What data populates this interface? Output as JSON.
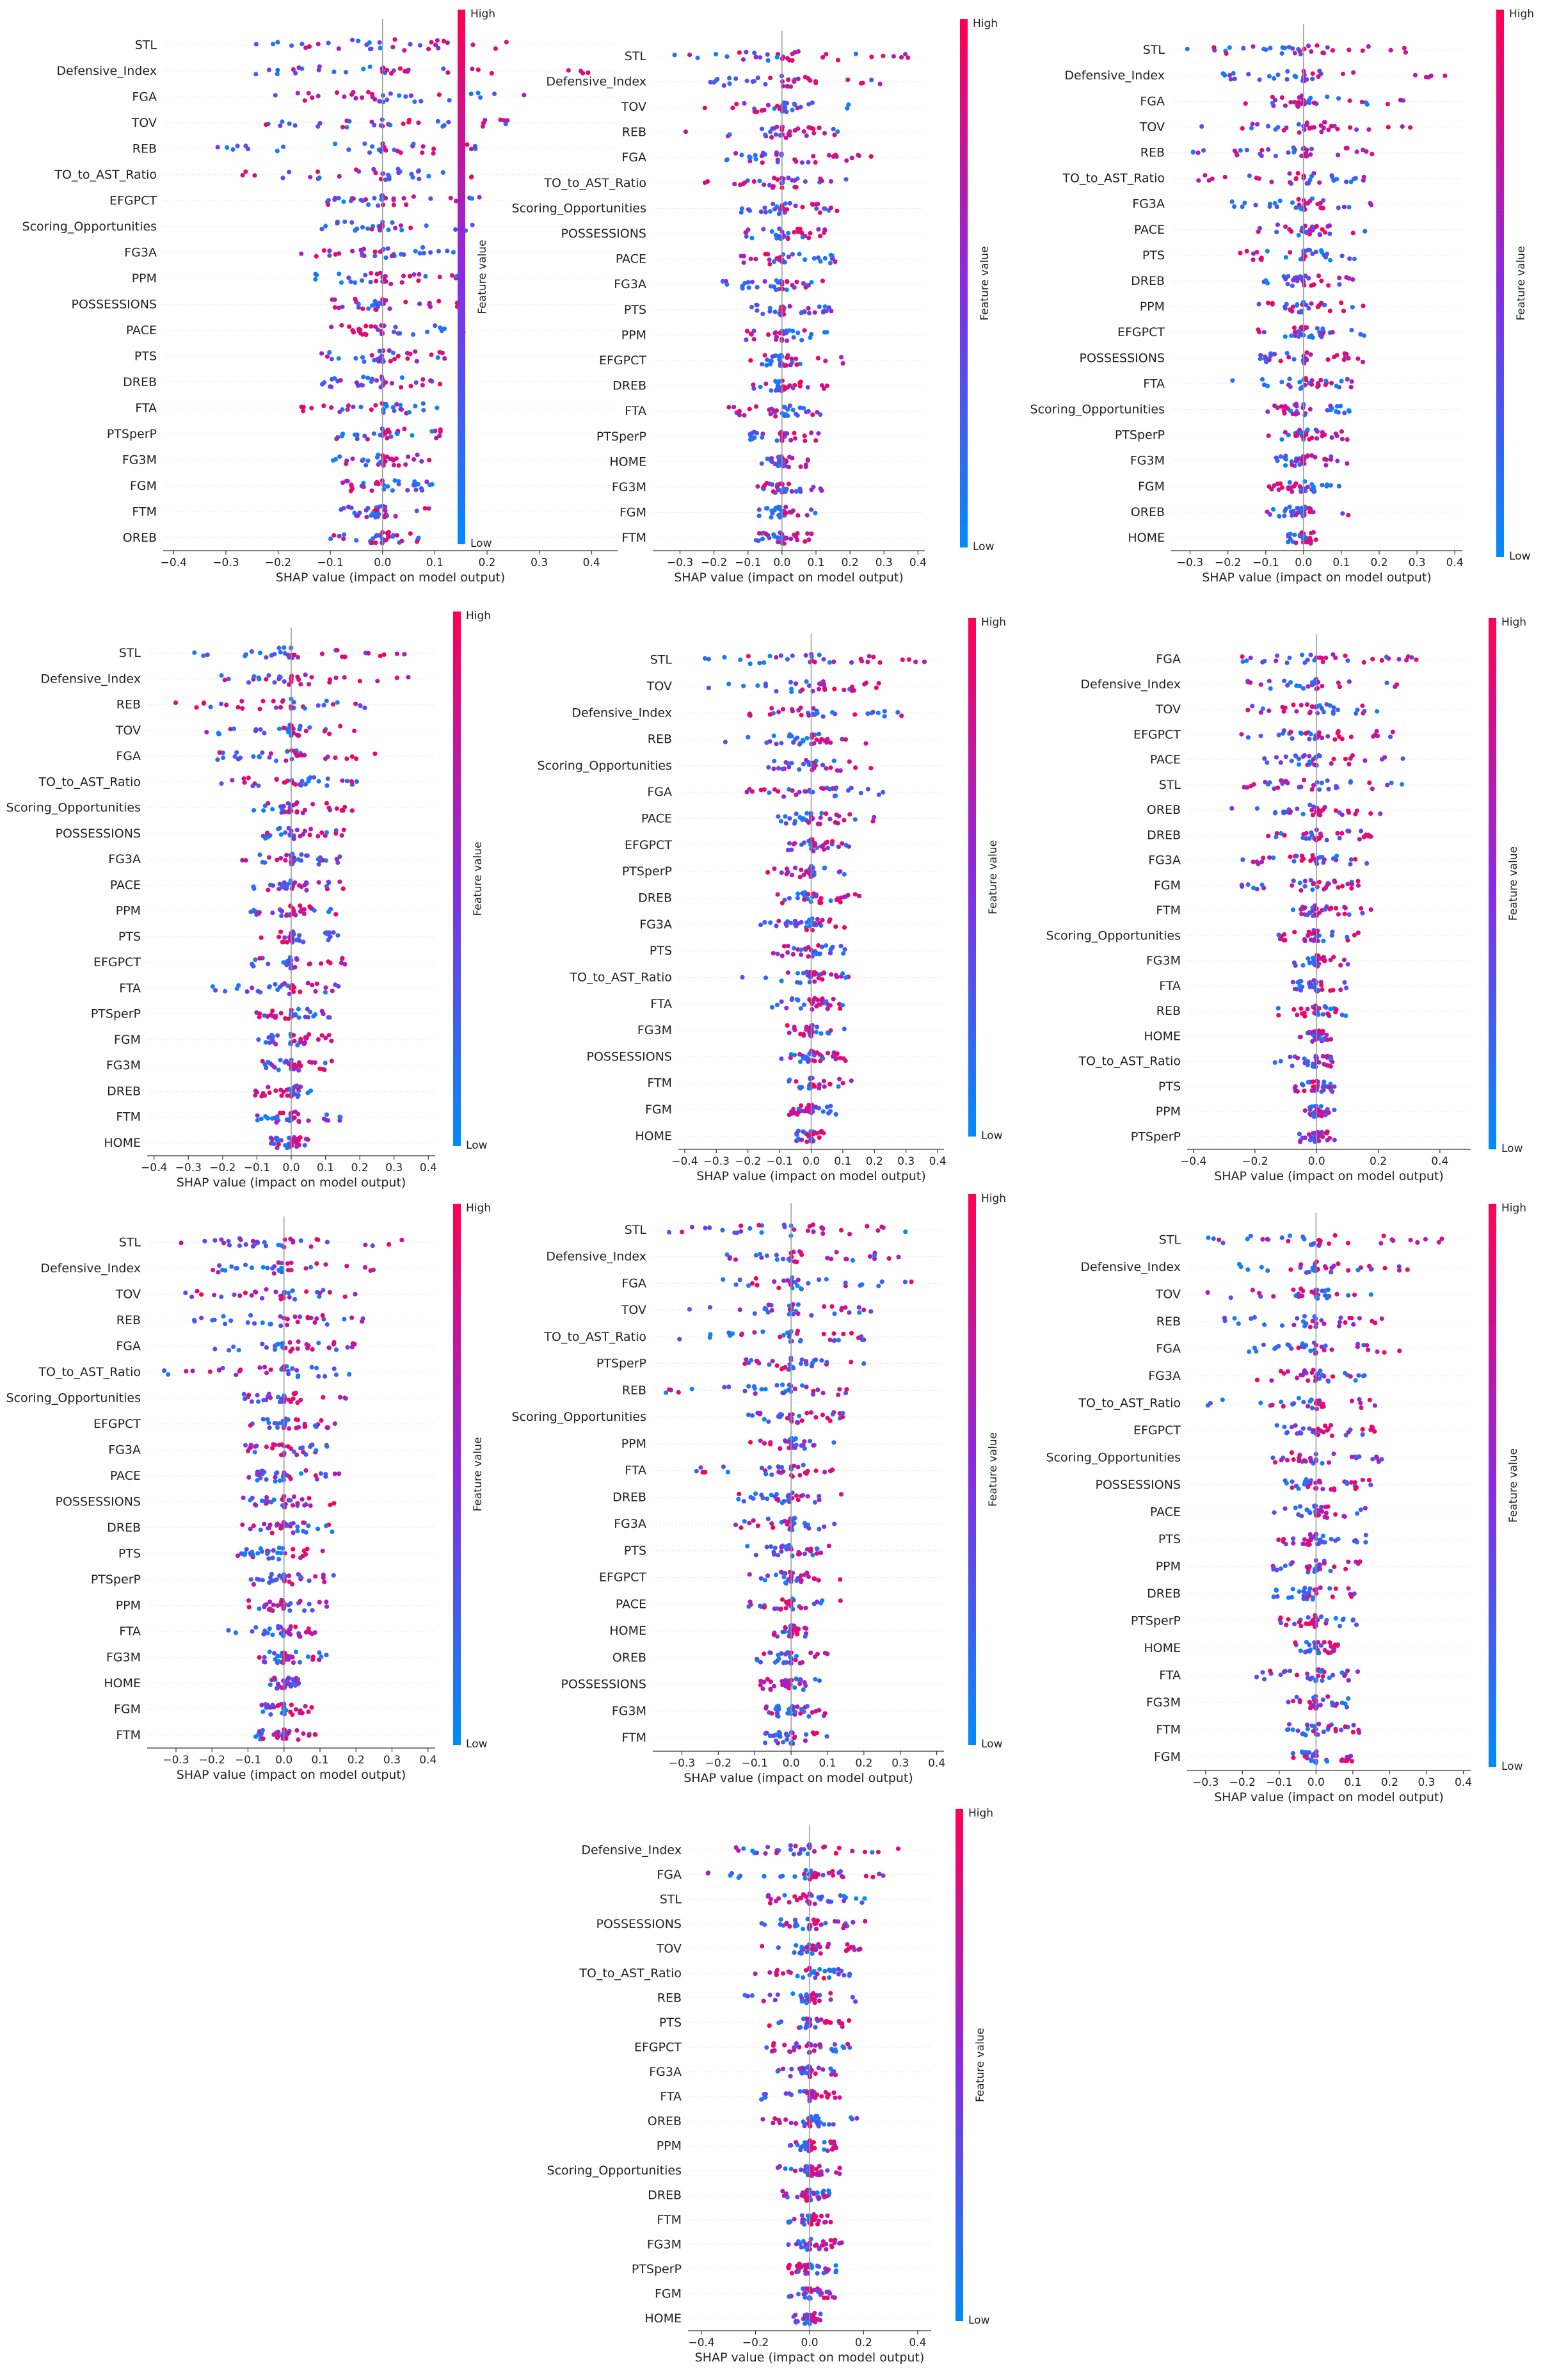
{
  "figure": {
    "xlabel": "SHAP value (impact on model output)",
    "colorbar": {
      "label": "Feature value",
      "high": "High",
      "low": "Low"
    },
    "colors": {
      "high": "#ff0051",
      "mid": "#8a2be2",
      "low": "#008bfb",
      "gridline": "#e8e8e8",
      "zero_line": "#999999"
    }
  },
  "chart_data": [
    {
      "type": "scatter",
      "subtype": "shap-beeswarm",
      "xlabel": "SHAP value (impact on model output)",
      "xlim": [
        -0.42,
        0.45
      ],
      "xticks": [
        -0.4,
        -0.3,
        -0.2,
        -0.1,
        0.0,
        0.1,
        0.2,
        0.3,
        0.4
      ],
      "features": [
        "STL",
        "Defensive_Index",
        "FGA",
        "TOV",
        "REB",
        "TO_to_AST_Ratio",
        "EFGPCT",
        "Scoring_Opportunities",
        "FG3A",
        "PPM",
        "POSSESSIONS",
        "PACE",
        "PTS",
        "DREB",
        "FTA",
        "PTSperP",
        "FG3M",
        "FGM",
        "FTM",
        "OREB"
      ],
      "spread": [
        [
          -0.3,
          0.32
        ],
        [
          -0.25,
          0.4
        ],
        [
          -0.22,
          0.28
        ],
        [
          -0.3,
          0.24
        ],
        [
          -0.35,
          0.2
        ],
        [
          -0.3,
          0.18
        ],
        [
          -0.12,
          0.2
        ],
        [
          -0.12,
          0.18
        ],
        [
          -0.16,
          0.15
        ],
        [
          -0.14,
          0.15
        ],
        [
          -0.12,
          0.16
        ],
        [
          -0.1,
          0.16
        ],
        [
          -0.12,
          0.12
        ],
        [
          -0.12,
          0.12
        ],
        [
          -0.16,
          0.12
        ],
        [
          -0.1,
          0.12
        ],
        [
          -0.1,
          0.1
        ],
        [
          -0.08,
          0.1
        ],
        [
          -0.08,
          0.1
        ],
        [
          -0.1,
          0.08
        ]
      ]
    },
    {
      "type": "scatter",
      "subtype": "shap-beeswarm",
      "xlabel": "SHAP value (impact on model output)",
      "xlim": [
        -0.38,
        0.42
      ],
      "xticks": [
        -0.3,
        -0.2,
        -0.1,
        0.0,
        0.1,
        0.2,
        0.3,
        0.4
      ],
      "features": [
        "STL",
        "Defensive_Index",
        "TOV",
        "REB",
        "FGA",
        "TO_to_AST_Ratio",
        "Scoring_Opportunities",
        "POSSESSIONS",
        "PACE",
        "FG3A",
        "PTS",
        "PPM",
        "EFGPCT",
        "DREB",
        "FTA",
        "PTSperP",
        "HOME",
        "FG3M",
        "FGM",
        "FTM"
      ],
      "spread": [
        [
          -0.34,
          0.38
        ],
        [
          -0.22,
          0.3
        ],
        [
          -0.28,
          0.2
        ],
        [
          -0.3,
          0.18
        ],
        [
          -0.18,
          0.28
        ],
        [
          -0.28,
          0.2
        ],
        [
          -0.12,
          0.18
        ],
        [
          -0.12,
          0.16
        ],
        [
          -0.12,
          0.16
        ],
        [
          -0.18,
          0.12
        ],
        [
          -0.12,
          0.16
        ],
        [
          -0.12,
          0.14
        ],
        [
          -0.1,
          0.18
        ],
        [
          -0.12,
          0.14
        ],
        [
          -0.2,
          0.12
        ],
        [
          -0.1,
          0.12
        ],
        [
          -0.06,
          0.08
        ],
        [
          -0.08,
          0.12
        ],
        [
          -0.08,
          0.1
        ],
        [
          -0.08,
          0.1
        ]
      ]
    },
    {
      "type": "scatter",
      "subtype": "shap-beeswarm",
      "xlabel": "SHAP value (impact on model output)",
      "xlim": [
        -0.35,
        0.42
      ],
      "xticks": [
        -0.3,
        -0.2,
        -0.1,
        0.0,
        0.1,
        0.2,
        0.3,
        0.4
      ],
      "features": [
        "STL",
        "Defensive_Index",
        "FGA",
        "TOV",
        "REB",
        "TO_to_AST_Ratio",
        "FG3A",
        "PACE",
        "PTS",
        "DREB",
        "PPM",
        "EFGPCT",
        "POSSESSIONS",
        "FTA",
        "Scoring_Opportunities",
        "PTSperP",
        "FG3M",
        "FGM",
        "OREB",
        "HOME"
      ],
      "spread": [
        [
          -0.32,
          0.38
        ],
        [
          -0.28,
          0.38
        ],
        [
          -0.22,
          0.32
        ],
        [
          -0.3,
          0.3
        ],
        [
          -0.3,
          0.2
        ],
        [
          -0.3,
          0.16
        ],
        [
          -0.2,
          0.18
        ],
        [
          -0.12,
          0.18
        ],
        [
          -0.18,
          0.14
        ],
        [
          -0.12,
          0.16
        ],
        [
          -0.12,
          0.16
        ],
        [
          -0.12,
          0.2
        ],
        [
          -0.12,
          0.16
        ],
        [
          -0.2,
          0.14
        ],
        [
          -0.12,
          0.14
        ],
        [
          -0.1,
          0.12
        ],
        [
          -0.08,
          0.12
        ],
        [
          -0.1,
          0.1
        ],
        [
          -0.1,
          0.12
        ],
        [
          -0.05,
          0.04
        ]
      ]
    },
    {
      "type": "scatter",
      "subtype": "shap-beeswarm",
      "xlabel": "SHAP value (impact on model output)",
      "xlim": [
        -0.42,
        0.42
      ],
      "xticks": [
        -0.4,
        -0.3,
        -0.2,
        -0.1,
        0.0,
        0.1,
        0.2,
        0.3,
        0.4
      ],
      "features": [
        "STL",
        "Defensive_Index",
        "REB",
        "TOV",
        "FGA",
        "TO_to_AST_Ratio",
        "Scoring_Opportunities",
        "POSSESSIONS",
        "FG3A",
        "PACE",
        "PPM",
        "PTS",
        "EFGPCT",
        "FTA",
        "PTSperP",
        "FGM",
        "FG3M",
        "DREB",
        "FTM",
        "HOME"
      ],
      "spread": [
        [
          -0.3,
          0.35
        ],
        [
          -0.26,
          0.36
        ],
        [
          -0.36,
          0.26
        ],
        [
          -0.28,
          0.2
        ],
        [
          -0.22,
          0.26
        ],
        [
          -0.28,
          0.2
        ],
        [
          -0.14,
          0.2
        ],
        [
          -0.14,
          0.18
        ],
        [
          -0.16,
          0.16
        ],
        [
          -0.12,
          0.16
        ],
        [
          -0.12,
          0.14
        ],
        [
          -0.1,
          0.14
        ],
        [
          -0.12,
          0.16
        ],
        [
          -0.24,
          0.14
        ],
        [
          -0.12,
          0.12
        ],
        [
          -0.1,
          0.12
        ],
        [
          -0.1,
          0.12
        ],
        [
          -0.12,
          0.12
        ],
        [
          -0.1,
          0.16
        ],
        [
          -0.06,
          0.06
        ]
      ]
    },
    {
      "type": "scatter",
      "subtype": "shap-beeswarm",
      "xlabel": "SHAP value (impact on model output)",
      "xlim": [
        -0.42,
        0.42
      ],
      "xticks": [
        -0.4,
        -0.3,
        -0.2,
        -0.1,
        0.0,
        0.1,
        0.2,
        0.3,
        0.4
      ],
      "features": [
        "STL",
        "TOV",
        "Defensive_Index",
        "REB",
        "Scoring_Opportunities",
        "FGA",
        "PACE",
        "EFGPCT",
        "PTSperP",
        "DREB",
        "FG3A",
        "PTS",
        "TO_to_AST_Ratio",
        "FTA",
        "FG3M",
        "POSSESSIONS",
        "FTM",
        "FGM",
        "HOME"
      ],
      "spread": [
        [
          -0.34,
          0.36
        ],
        [
          -0.34,
          0.24
        ],
        [
          -0.2,
          0.3
        ],
        [
          -0.3,
          0.22
        ],
        [
          -0.16,
          0.2
        ],
        [
          -0.22,
          0.24
        ],
        [
          -0.14,
          0.2
        ],
        [
          -0.12,
          0.14
        ],
        [
          -0.14,
          0.12
        ],
        [
          -0.14,
          0.16
        ],
        [
          -0.16,
          0.12
        ],
        [
          -0.12,
          0.12
        ],
        [
          -0.22,
          0.12
        ],
        [
          -0.22,
          0.14
        ],
        [
          -0.08,
          0.12
        ],
        [
          -0.1,
          0.12
        ],
        [
          -0.08,
          0.14
        ],
        [
          -0.08,
          0.08
        ],
        [
          -0.05,
          0.04
        ]
      ]
    },
    {
      "type": "scatter",
      "subtype": "shap-beeswarm",
      "xlabel": "SHAP value (impact on model output)",
      "xlim": [
        -0.42,
        0.5
      ],
      "xticks": [
        -0.4,
        -0.2,
        0.0,
        0.2,
        0.4
      ],
      "features": [
        "FGA",
        "Defensive_Index",
        "TOV",
        "EFGPCT",
        "PACE",
        "STL",
        "OREB",
        "DREB",
        "FG3A",
        "FGM",
        "FTM",
        "Scoring_Opportunities",
        "FG3M",
        "FTA",
        "REB",
        "HOME",
        "TO_to_AST_Ratio",
        "PTS",
        "PPM",
        "PTSperP"
      ],
      "spread": [
        [
          -0.38,
          0.38
        ],
        [
          -0.25,
          0.46
        ],
        [
          -0.4,
          0.2
        ],
        [
          -0.25,
          0.3
        ],
        [
          -0.18,
          0.3
        ],
        [
          -0.25,
          0.3
        ],
        [
          -0.28,
          0.3
        ],
        [
          -0.18,
          0.22
        ],
        [
          -0.25,
          0.18
        ],
        [
          -0.25,
          0.14
        ],
        [
          -0.08,
          0.18
        ],
        [
          -0.14,
          0.14
        ],
        [
          -0.08,
          0.12
        ],
        [
          -0.08,
          0.1
        ],
        [
          -0.15,
          0.1
        ],
        [
          -0.06,
          0.05
        ],
        [
          -0.18,
          0.06
        ],
        [
          -0.08,
          0.06
        ],
        [
          -0.06,
          0.06
        ],
        [
          -0.06,
          0.06
        ]
      ]
    },
    {
      "type": "scatter",
      "subtype": "shap-beeswarm",
      "xlabel": "SHAP value (impact on model output)",
      "xlim": [
        -0.38,
        0.42
      ],
      "xticks": [
        -0.3,
        -0.2,
        -0.1,
        0.0,
        0.1,
        0.2,
        0.3,
        0.4
      ],
      "features": [
        "STL",
        "Defensive_Index",
        "TOV",
        "REB",
        "FGA",
        "TO_to_AST_Ratio",
        "Scoring_Opportunities",
        "EFGPCT",
        "FG3A",
        "PACE",
        "POSSESSIONS",
        "DREB",
        "PTS",
        "PTSperP",
        "PPM",
        "FTA",
        "FG3M",
        "HOME",
        "FGM",
        "FTM"
      ],
      "spread": [
        [
          -0.3,
          0.36
        ],
        [
          -0.24,
          0.3
        ],
        [
          -0.3,
          0.2
        ],
        [
          -0.28,
          0.22
        ],
        [
          -0.2,
          0.22
        ],
        [
          -0.36,
          0.2
        ],
        [
          -0.12,
          0.18
        ],
        [
          -0.12,
          0.18
        ],
        [
          -0.14,
          0.14
        ],
        [
          -0.12,
          0.16
        ],
        [
          -0.12,
          0.14
        ],
        [
          -0.12,
          0.14
        ],
        [
          -0.14,
          0.14
        ],
        [
          -0.1,
          0.14
        ],
        [
          -0.1,
          0.12
        ],
        [
          -0.16,
          0.1
        ],
        [
          -0.08,
          0.12
        ],
        [
          -0.05,
          0.05
        ],
        [
          -0.08,
          0.08
        ],
        [
          -0.08,
          0.1
        ]
      ]
    },
    {
      "type": "scatter",
      "subtype": "shap-beeswarm",
      "xlabel": "SHAP value (impact on model output)",
      "xlim": [
        -0.38,
        0.42
      ],
      "xticks": [
        -0.3,
        -0.2,
        -0.1,
        0.0,
        0.1,
        0.2,
        0.3,
        0.4
      ],
      "features": [
        "STL",
        "Defensive_Index",
        "FGA",
        "TOV",
        "TO_to_AST_Ratio",
        "PTSperP",
        "REB",
        "Scoring_Opportunities",
        "PPM",
        "FTA",
        "DREB",
        "FG3A",
        "PTS",
        "EFGPCT",
        "PACE",
        "HOME",
        "OREB",
        "POSSESSIONS",
        "FG3M",
        "FTM"
      ],
      "spread": [
        [
          -0.34,
          0.36
        ],
        [
          -0.3,
          0.3
        ],
        [
          -0.28,
          0.34
        ],
        [
          -0.28,
          0.24
        ],
        [
          -0.34,
          0.2
        ],
        [
          -0.16,
          0.2
        ],
        [
          -0.36,
          0.2
        ],
        [
          -0.12,
          0.2
        ],
        [
          -0.12,
          0.16
        ],
        [
          -0.26,
          0.12
        ],
        [
          -0.16,
          0.14
        ],
        [
          -0.18,
          0.12
        ],
        [
          -0.14,
          0.12
        ],
        [
          -0.12,
          0.14
        ],
        [
          -0.12,
          0.14
        ],
        [
          -0.05,
          0.05
        ],
        [
          -0.1,
          0.1
        ],
        [
          -0.1,
          0.1
        ],
        [
          -0.08,
          0.1
        ],
        [
          -0.08,
          0.1
        ]
      ]
    },
    {
      "type": "scatter",
      "subtype": "shap-beeswarm",
      "xlabel": "SHAP value (impact on model output)",
      "xlim": [
        -0.35,
        0.42
      ],
      "xticks": [
        -0.3,
        -0.2,
        -0.1,
        0.0,
        0.1,
        0.2,
        0.3,
        0.4
      ],
      "features": [
        "STL",
        "Defensive_Index",
        "TOV",
        "REB",
        "FGA",
        "FG3A",
        "TO_to_AST_Ratio",
        "EFGPCT",
        "Scoring_Opportunities",
        "POSSESSIONS",
        "PACE",
        "PTS",
        "PPM",
        "DREB",
        "PTSperP",
        "HOME",
        "FTA",
        "FG3M",
        "FTM",
        "FGM"
      ],
      "spread": [
        [
          -0.3,
          0.38
        ],
        [
          -0.26,
          0.32
        ],
        [
          -0.3,
          0.2
        ],
        [
          -0.3,
          0.2
        ],
        [
          -0.2,
          0.24
        ],
        [
          -0.18,
          0.14
        ],
        [
          -0.3,
          0.16
        ],
        [
          -0.12,
          0.18
        ],
        [
          -0.12,
          0.18
        ],
        [
          -0.12,
          0.16
        ],
        [
          -0.12,
          0.14
        ],
        [
          -0.12,
          0.14
        ],
        [
          -0.12,
          0.12
        ],
        [
          -0.12,
          0.12
        ],
        [
          -0.1,
          0.14
        ],
        [
          -0.06,
          0.06
        ],
        [
          -0.18,
          0.12
        ],
        [
          -0.08,
          0.12
        ],
        [
          -0.08,
          0.12
        ],
        [
          -0.08,
          0.1
        ]
      ]
    },
    {
      "type": "scatter",
      "subtype": "shap-beeswarm",
      "xlabel": "SHAP value (impact on model output)",
      "xlim": [
        -0.45,
        0.45
      ],
      "xticks": [
        -0.4,
        -0.2,
        0.0,
        0.2,
        0.4
      ],
      "features": [
        "Defensive_Index",
        "FGA",
        "STL",
        "POSSESSIONS",
        "TOV",
        "TO_to_AST_Ratio",
        "REB",
        "PTS",
        "EFGPCT",
        "FG3A",
        "FTA",
        "OREB",
        "PPM",
        "Scoring_Opportunities",
        "DREB",
        "FTM",
        "FG3M",
        "PTSperP",
        "FGM",
        "HOME"
      ],
      "spread": [
        [
          -0.3,
          0.4
        ],
        [
          -0.38,
          0.3
        ],
        [
          -0.2,
          0.24
        ],
        [
          -0.18,
          0.22
        ],
        [
          -0.2,
          0.2
        ],
        [
          -0.25,
          0.15
        ],
        [
          -0.25,
          0.18
        ],
        [
          -0.16,
          0.16
        ],
        [
          -0.18,
          0.18
        ],
        [
          -0.14,
          0.14
        ],
        [
          -0.18,
          0.12
        ],
        [
          -0.18,
          0.2
        ],
        [
          -0.1,
          0.12
        ],
        [
          -0.12,
          0.12
        ],
        [
          -0.1,
          0.12
        ],
        [
          -0.08,
          0.12
        ],
        [
          -0.08,
          0.12
        ],
        [
          -0.08,
          0.1
        ],
        [
          -0.08,
          0.1
        ],
        [
          -0.06,
          0.05
        ]
      ]
    }
  ]
}
